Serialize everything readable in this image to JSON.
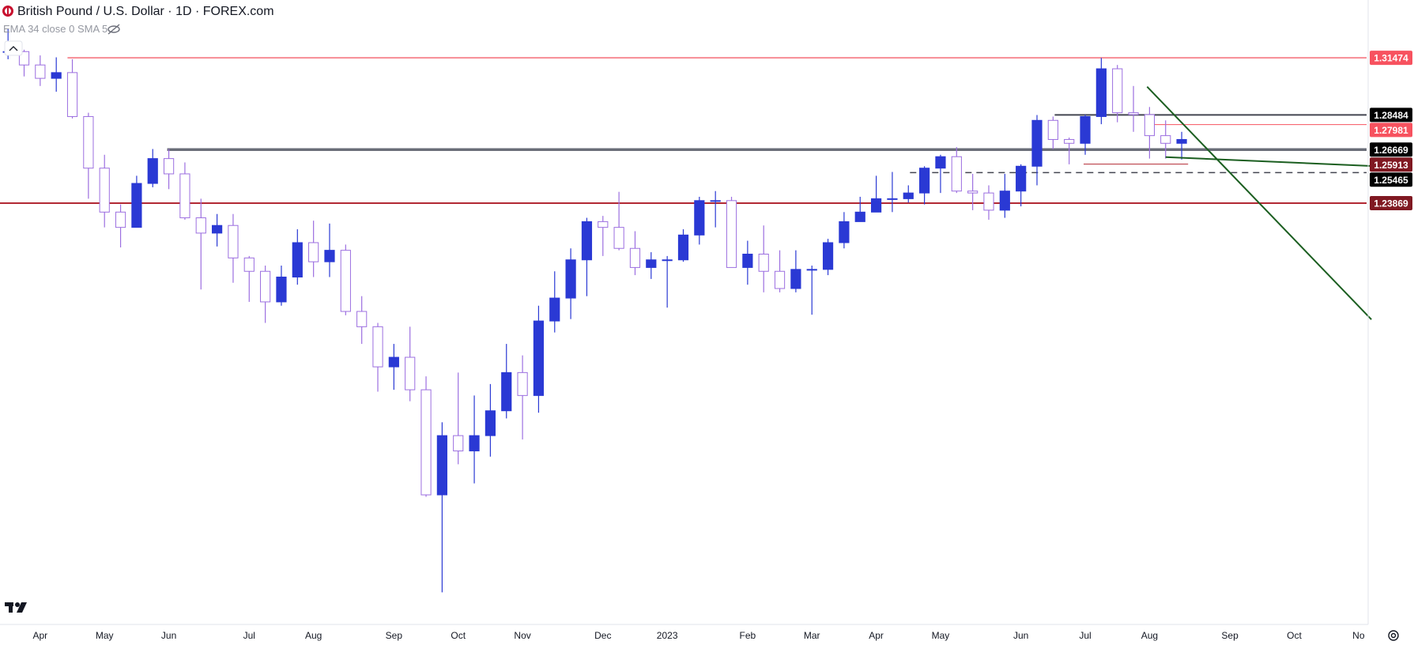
{
  "header": {
    "title": "British Pound / U.S. Dollar · 1D · FOREX.com",
    "indicators": "EMA 34 close 0 SMA 5"
  },
  "chart_data": {
    "type": "candlestick",
    "categories": [
      null,
      null,
      "Apr",
      null,
      null,
      null,
      "May",
      null,
      null,
      null,
      "Jun",
      null,
      null,
      null,
      null,
      "Jul",
      null,
      null,
      null,
      "Aug",
      null,
      null,
      null,
      null,
      "Sep",
      null,
      null,
      null,
      "Oct",
      null,
      null,
      null,
      "Nov",
      null,
      null,
      null,
      null,
      "Dec",
      null,
      null,
      null,
      "2023",
      null,
      null,
      null,
      null,
      "Feb",
      null,
      null,
      null,
      "Mar",
      null,
      null,
      null,
      "Apr",
      null,
      null,
      null,
      "May",
      null,
      null,
      null,
      null,
      "Jun",
      null,
      null,
      null,
      "Jul",
      null,
      null,
      null,
      "Aug",
      null,
      null,
      null,
      null,
      "Sep",
      null,
      null,
      null,
      "Oct",
      null,
      null,
      null,
      "No"
    ],
    "open": [
      1.318,
      1.318,
      1.311,
      1.304,
      1.307,
      1.284,
      1.257,
      1.234,
      1.226,
      1.249,
      1.262,
      1.254,
      1.231,
      1.223,
      1.227,
      1.21,
      1.203,
      1.187,
      1.2,
      1.218,
      1.208,
      1.214,
      1.182,
      1.174,
      1.153,
      1.158,
      1.141,
      1.086,
      1.117,
      1.109,
      1.117,
      1.13,
      1.15,
      1.138,
      1.177,
      1.189,
      1.209,
      1.229,
      1.226,
      1.215,
      1.205,
      1.209,
      1.209,
      1.222,
      1.24,
      1.24,
      1.205,
      1.212,
      1.203,
      1.194,
      1.204,
      1.204,
      1.218,
      1.229,
      1.234,
      1.241,
      1.241,
      1.244,
      1.257,
      1.263,
      1.245,
      1.244,
      1.235,
      1.245,
      1.258,
      1.282,
      1.272,
      1.27,
      1.284,
      1.309,
      1.286,
      1.285,
      1.274,
      1.27,
      null,
      null,
      null,
      null,
      null,
      null,
      null,
      null,
      null,
      null,
      null
    ],
    "high": [
      1.33,
      1.319,
      1.316,
      1.315,
      1.314,
      1.286,
      1.264,
      1.238,
      1.253,
      1.267,
      1.267,
      1.26,
      1.241,
      1.233,
      1.233,
      1.211,
      1.206,
      1.206,
      1.225,
      1.2295,
      1.228,
      1.217,
      1.19,
      1.176,
      1.165,
      1.174,
      1.148,
      1.124,
      1.15,
      1.138,
      1.144,
      1.165,
      1.159,
      1.185,
      1.203,
      1.215,
      1.231,
      1.232,
      1.2446,
      1.224,
      1.213,
      1.211,
      1.225,
      1.242,
      1.245,
      1.242,
      1.219,
      1.227,
      1.214,
      1.214,
      1.206,
      1.22,
      1.234,
      1.242,
      1.253,
      1.255,
      1.248,
      1.258,
      1.264,
      1.268,
      1.254,
      1.248,
      1.254,
      1.259,
      1.2848,
      1.284,
      1.273,
      1.285,
      1.3147,
      1.311,
      1.3,
      1.289,
      1.282,
      1.276,
      null,
      null,
      null,
      null,
      null,
      null,
      null,
      null,
      null,
      null,
      null
    ],
    "low": [
      1.314,
      1.305,
      1.3,
      1.297,
      1.283,
      1.241,
      1.226,
      1.2155,
      1.226,
      1.247,
      1.246,
      1.23,
      1.1935,
      1.216,
      1.197,
      1.187,
      1.176,
      1.185,
      1.196,
      1.2,
      1.2,
      1.18,
      1.165,
      1.14,
      1.141,
      1.135,
      1.085,
      1.035,
      1.102,
      1.092,
      1.106,
      1.126,
      1.115,
      1.129,
      1.171,
      1.178,
      1.19,
      1.211,
      1.214,
      1.201,
      1.199,
      1.184,
      1.208,
      1.217,
      1.226,
      1.205,
      1.196,
      1.192,
      1.192,
      1.192,
      1.1803,
      1.201,
      1.215,
      1.229,
      1.234,
      1.234,
      1.239,
      1.238,
      1.244,
      1.244,
      1.235,
      1.23,
      1.231,
      1.237,
      1.248,
      1.267,
      1.259,
      1.264,
      1.28,
      1.281,
      1.276,
      1.262,
      1.262,
      1.2615,
      null,
      null,
      null,
      null,
      null,
      null,
      null,
      null,
      null,
      null,
      null
    ],
    "close": [
      1.318,
      1.311,
      1.304,
      1.307,
      1.284,
      1.257,
      1.234,
      1.226,
      1.249,
      1.262,
      1.254,
      1.231,
      1.223,
      1.227,
      1.21,
      1.203,
      1.187,
      1.2,
      1.218,
      1.208,
      1.214,
      1.182,
      1.174,
      1.153,
      1.158,
      1.141,
      1.086,
      1.117,
      1.109,
      1.117,
      1.13,
      1.15,
      1.138,
      1.177,
      1.189,
      1.209,
      1.229,
      1.226,
      1.215,
      1.205,
      1.209,
      1.209,
      1.222,
      1.24,
      1.24,
      1.205,
      1.212,
      1.203,
      1.194,
      1.204,
      1.204,
      1.218,
      1.229,
      1.234,
      1.241,
      1.241,
      1.244,
      1.257,
      1.263,
      1.245,
      1.244,
      1.235,
      1.245,
      1.258,
      1.282,
      1.272,
      1.27,
      1.284,
      1.309,
      1.286,
      1.285,
      1.274,
      1.27,
      1.272,
      null,
      null,
      null,
      null,
      null,
      null,
      null,
      null,
      null,
      null,
      null
    ],
    "up_color": "#2a39d4",
    "down_color": "#9c6fe0",
    "ylim": [
      1.019,
      1.345
    ],
    "levels": [
      {
        "value": 1.31474,
        "from": 3.7,
        "color": "#f7525f",
        "line_color": "#f78c94",
        "style": "solid"
      },
      {
        "value": 1.28484,
        "from": 65.1,
        "color": "#000000",
        "line_color": "#434651",
        "style": "solid"
      },
      {
        "value": 1.27981,
        "from": 71.1,
        "color": "#f7525f",
        "line_color": "#f7525f",
        "style": "thin"
      },
      {
        "value": 1.26669,
        "from": 9.9,
        "color": "#000000",
        "line_color": "#6a6d78",
        "style": "thick"
      },
      {
        "value": 1.25913,
        "from": 66.9,
        "to": 73.4,
        "color": "#801922",
        "line_color": "#b22833",
        "style": "thin"
      },
      {
        "value": 1.25465,
        "from": 56.1,
        "color": "#000000",
        "line_color": "#434651",
        "style": "dashed"
      },
      {
        "value": 1.23869,
        "from": -0.5,
        "color": "#801922",
        "line_color": "#b22833",
        "style": "solid"
      }
    ],
    "trend_lines": [
      {
        "color": "#1b5e20",
        "x": [
          70.85,
          84.8
        ],
        "y": [
          1.2996,
          1.1778
        ]
      },
      {
        "color": "#1b5e20",
        "x": [
          72.0,
          84.8
        ],
        "y": [
          1.2628,
          1.2581
        ]
      }
    ]
  }
}
